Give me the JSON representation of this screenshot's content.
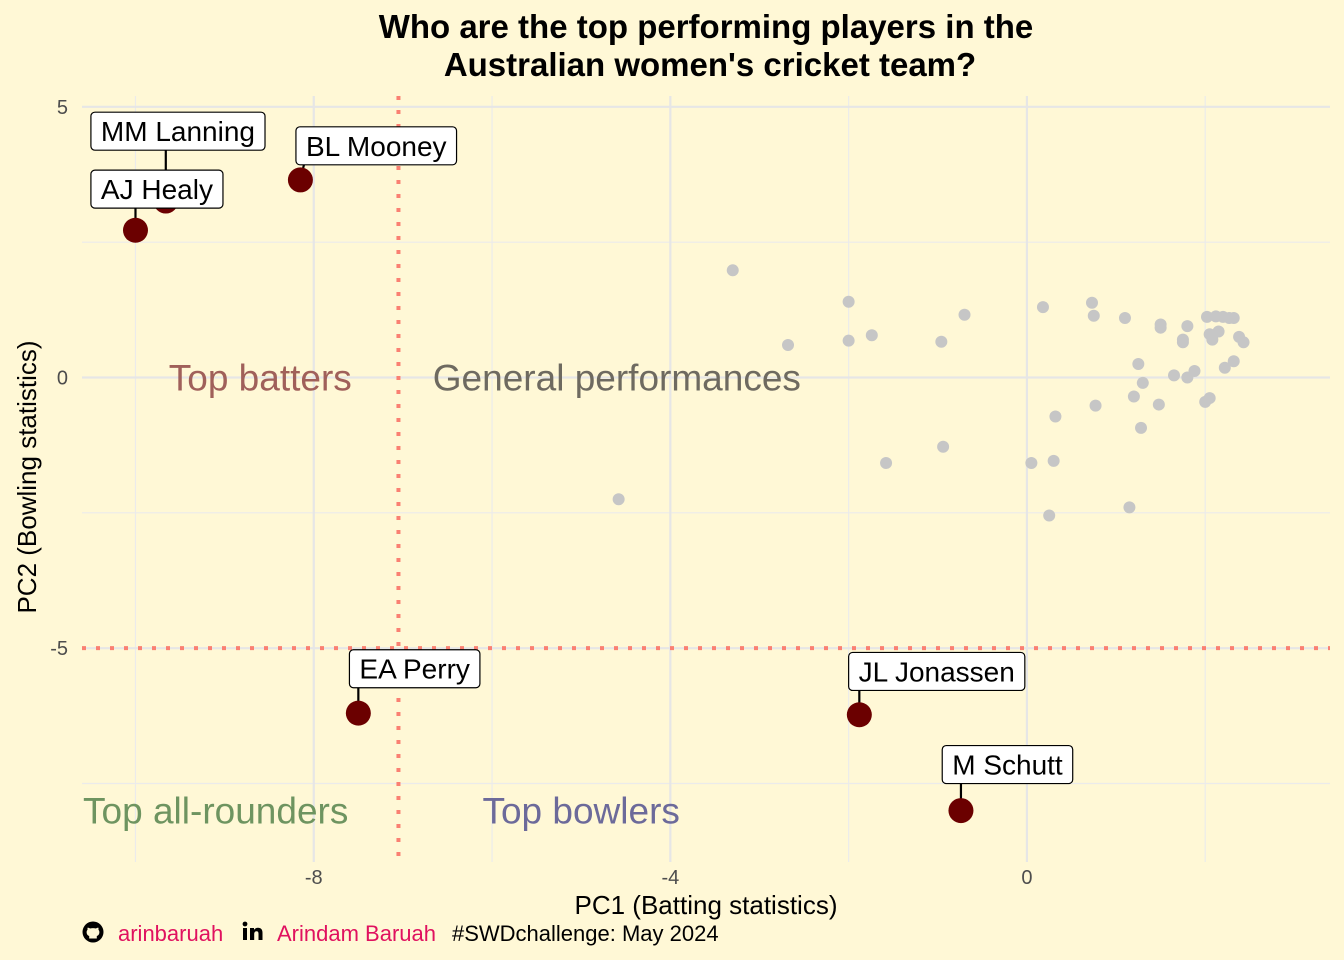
{
  "chart_data": {
    "type": "scatter",
    "title": [
      "Who are the top performing players in the",
      "Australian women's cricket team?"
    ],
    "xlabel": "PC1 (Batting statistics)",
    "ylabel": "PC2 (Bowling statistics)",
    "xlim": [
      -10.6,
      3.4
    ],
    "ylim": [
      -8.95,
      5.2
    ],
    "x_ticks": [
      -8,
      -4,
      0
    ],
    "y_ticks": [
      5,
      0,
      -5
    ],
    "x_minor_ticks": [
      -10,
      -6,
      -2,
      2
    ],
    "y_minor_ticks": [
      2.5,
      -2.5,
      -7.5
    ],
    "grid": true,
    "reference_lines": {
      "x": -7.05,
      "y": -5,
      "color": "#FA8072"
    },
    "quadrant_labels": [
      {
        "text": "Top batters",
        "x": -8.6,
        "y": 0,
        "color": "#A0605A"
      },
      {
        "text": "General performances",
        "x": -4.6,
        "y": 0,
        "color": "#6E6A60"
      },
      {
        "text": "Top all-rounders",
        "x": -9.1,
        "y": -8.0,
        "color": "#6E9460"
      },
      {
        "text": "Top bowlers",
        "x": -5.0,
        "y": -8.0,
        "color": "#6C6A9A"
      }
    ],
    "highlight_color": "#6B0000",
    "other_color": "#C6C6C6",
    "highlighted_players": [
      {
        "name": "MM Lanning",
        "x": -9.66,
        "y": 3.26,
        "label_x": -10.5,
        "label_y": 4.55
      },
      {
        "name": "AJ Healy",
        "x": -10.0,
        "y": 2.72,
        "label_x": -10.5,
        "label_y": 3.48
      },
      {
        "name": "BL Mooney",
        "x": -8.15,
        "y": 3.65,
        "label_x": -8.2,
        "label_y": 4.28
      },
      {
        "name": "EA Perry",
        "x": -7.5,
        "y": -6.2,
        "label_x": -7.6,
        "label_y": -5.38
      },
      {
        "name": "JL Jonassen",
        "x": -1.88,
        "y": -6.23,
        "label_x": -2.0,
        "label_y": -5.43
      },
      {
        "name": "M Schutt",
        "x": -0.74,
        "y": -8.0,
        "label_x": -0.95,
        "label_y": -7.15
      }
    ],
    "other_players": [
      [
        -3.3,
        1.98
      ],
      [
        -4.58,
        -2.25
      ],
      [
        -2.68,
        0.6
      ],
      [
        -2.0,
        1.4
      ],
      [
        -2.0,
        0.68
      ],
      [
        -1.74,
        0.78
      ],
      [
        -1.58,
        -1.58
      ],
      [
        -0.96,
        0.66
      ],
      [
        -0.94,
        -1.28
      ],
      [
        -0.7,
        1.16
      ],
      [
        0.05,
        -1.58
      ],
      [
        0.18,
        1.3
      ],
      [
        0.25,
        -2.55
      ],
      [
        0.3,
        -1.54
      ],
      [
        0.32,
        -0.72
      ],
      [
        0.73,
        1.38
      ],
      [
        0.75,
        1.14
      ],
      [
        0.77,
        -0.52
      ],
      [
        1.1,
        1.1
      ],
      [
        1.15,
        -2.4
      ],
      [
        1.2,
        -0.35
      ],
      [
        1.25,
        0.25
      ],
      [
        1.28,
        -0.93
      ],
      [
        1.3,
        -0.1
      ],
      [
        1.48,
        -0.5
      ],
      [
        1.5,
        0.98
      ],
      [
        1.5,
        0.92
      ],
      [
        1.65,
        0.04
      ],
      [
        1.75,
        0.7
      ],
      [
        1.75,
        0.65
      ],
      [
        1.8,
        0.95
      ],
      [
        1.8,
        0.0
      ],
      [
        1.88,
        0.12
      ],
      [
        2.0,
        -0.45
      ],
      [
        2.05,
        -0.38
      ],
      [
        2.02,
        1.12
      ],
      [
        2.05,
        0.8
      ],
      [
        2.08,
        0.7
      ],
      [
        2.12,
        1.13
      ],
      [
        2.15,
        0.85
      ],
      [
        2.2,
        1.12
      ],
      [
        2.22,
        0.18
      ],
      [
        2.27,
        1.1
      ],
      [
        2.32,
        0.3
      ],
      [
        2.32,
        1.1
      ],
      [
        2.38,
        0.75
      ],
      [
        2.43,
        0.65
      ]
    ]
  },
  "caption": {
    "github_icon": "github-icon",
    "github_handle": "arinbaruah",
    "linkedin_icon": "linkedin-icon",
    "linkedin_name": "Arindam Baruah",
    "tag": "#SWDchallenge: May 2024",
    "link_color": "#E0115F"
  }
}
